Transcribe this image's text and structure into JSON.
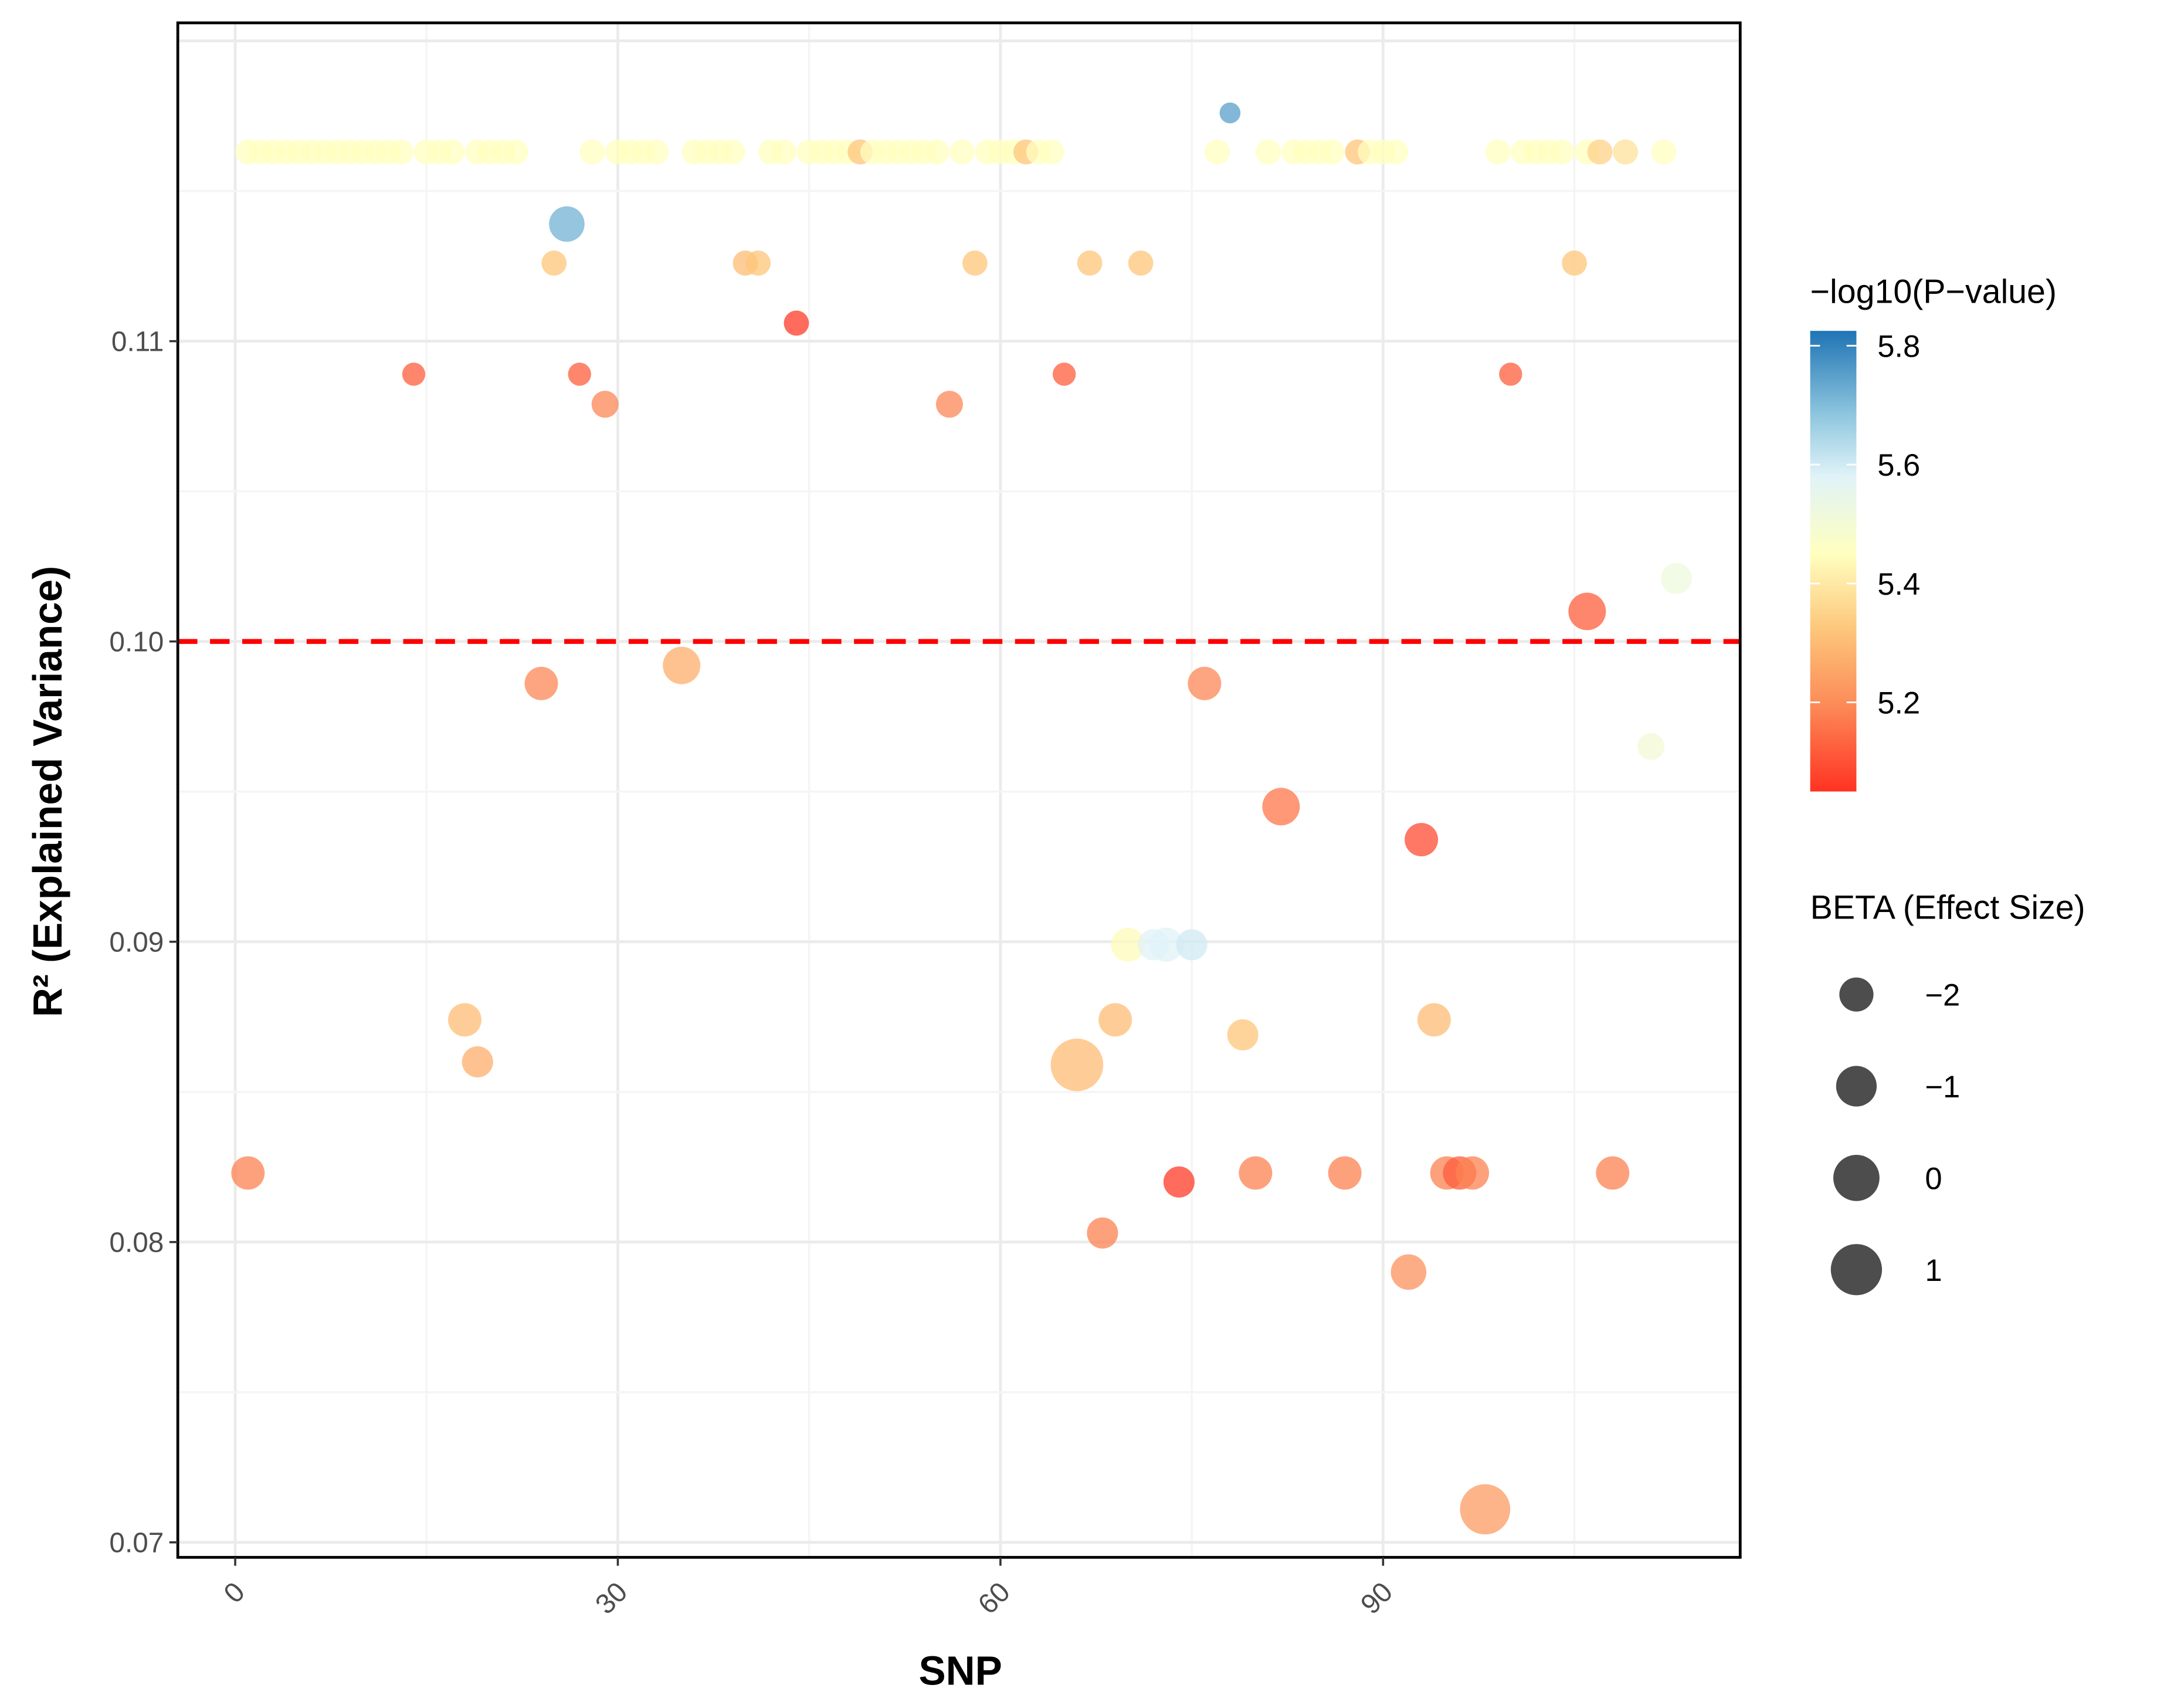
{
  "chart_data": {
    "type": "scatter",
    "title": "",
    "xlabel": "SNP",
    "ylabel": "R² (Explained Variance)",
    "xlim": [
      -4.5,
      118
    ],
    "ylim": [
      0.0695,
      0.1206
    ],
    "x_ticks": [
      0,
      30,
      60,
      90
    ],
    "x_tick_labels": [
      "0",
      "30",
      "60",
      "90"
    ],
    "y_ticks": [
      0.07,
      0.08,
      0.09,
      0.1,
      0.11
    ],
    "y_tick_labels": [
      "0.07",
      "0.08",
      "0.09",
      "0.10",
      "0.11"
    ],
    "grid": true,
    "threshold_line": {
      "y": 0.1,
      "color": "#FF0000",
      "style": "dashed"
    },
    "color_legend": {
      "title": "−log10(P−value)",
      "range": [
        5.05,
        5.825
      ],
      "ticks": [
        5.8,
        5.6,
        5.4,
        5.2
      ],
      "tick_labels": [
        "5.8",
        "5.6",
        "5.4",
        "5.2"
      ],
      "stops": [
        {
          "v": 5.05,
          "c": "#FF3322"
        },
        {
          "v": 5.2,
          "c": "#FC8D59"
        },
        {
          "v": 5.32,
          "c": "#FDC57A"
        },
        {
          "v": 5.45,
          "c": "#FFFFBF"
        },
        {
          "v": 5.58,
          "c": "#E0F3F8"
        },
        {
          "v": 5.68,
          "c": "#91C8E0"
        },
        {
          "v": 5.825,
          "c": "#1F74B4"
        }
      ],
      "placement": "right"
    },
    "size_legend": {
      "title": "BETA (Effect Size)",
      "values": [
        -2,
        -1,
        0,
        1
      ],
      "labels": [
        "−2",
        "−1",
        "0",
        "1"
      ],
      "placement": "right"
    },
    "points": [
      {
        "x": 1,
        "r2": 0.1163,
        "logp": 5.45,
        "beta": -3.1
      },
      {
        "x": 2,
        "r2": 0.1163,
        "logp": 5.45,
        "beta": -3.1
      },
      {
        "x": 3,
        "r2": 0.1163,
        "logp": 5.45,
        "beta": -3.1
      },
      {
        "x": 4,
        "r2": 0.1163,
        "logp": 5.45,
        "beta": -3.1
      },
      {
        "x": 5,
        "r2": 0.1163,
        "logp": 5.45,
        "beta": -3.1
      },
      {
        "x": 6,
        "r2": 0.1163,
        "logp": 5.45,
        "beta": -3.1
      },
      {
        "x": 7,
        "r2": 0.1163,
        "logp": 5.45,
        "beta": -3.1
      },
      {
        "x": 8,
        "r2": 0.1163,
        "logp": 5.45,
        "beta": -3.1
      },
      {
        "x": 9,
        "r2": 0.1163,
        "logp": 5.45,
        "beta": -3.1
      },
      {
        "x": 10,
        "r2": 0.1163,
        "logp": 5.45,
        "beta": -3.1
      },
      {
        "x": 11,
        "r2": 0.1163,
        "logp": 5.45,
        "beta": -3.1
      },
      {
        "x": 12,
        "r2": 0.1163,
        "logp": 5.45,
        "beta": -3.1
      },
      {
        "x": 13,
        "r2": 0.1163,
        "logp": 5.45,
        "beta": -3.1
      },
      {
        "x": 15,
        "r2": 0.1163,
        "logp": 5.45,
        "beta": -3.1
      },
      {
        "x": 16,
        "r2": 0.1163,
        "logp": 5.45,
        "beta": -3.1
      },
      {
        "x": 17,
        "r2": 0.1163,
        "logp": 5.45,
        "beta": -3.1
      },
      {
        "x": 19,
        "r2": 0.1163,
        "logp": 5.45,
        "beta": -3.1
      },
      {
        "x": 20,
        "r2": 0.1163,
        "logp": 5.45,
        "beta": -3.1
      },
      {
        "x": 21,
        "r2": 0.1163,
        "logp": 5.45,
        "beta": -3.1
      },
      {
        "x": 22,
        "r2": 0.1163,
        "logp": 5.45,
        "beta": -3.1
      },
      {
        "x": 28,
        "r2": 0.1163,
        "logp": 5.45,
        "beta": -3.1
      },
      {
        "x": 30,
        "r2": 0.1163,
        "logp": 5.45,
        "beta": -3.1
      },
      {
        "x": 31,
        "r2": 0.1163,
        "logp": 5.45,
        "beta": -3.1
      },
      {
        "x": 32,
        "r2": 0.1163,
        "logp": 5.45,
        "beta": -3.1
      },
      {
        "x": 33,
        "r2": 0.1163,
        "logp": 5.45,
        "beta": -3.1
      },
      {
        "x": 36,
        "r2": 0.1163,
        "logp": 5.45,
        "beta": -3.1
      },
      {
        "x": 37,
        "r2": 0.1163,
        "logp": 5.45,
        "beta": -3.1
      },
      {
        "x": 38,
        "r2": 0.1163,
        "logp": 5.45,
        "beta": -3.1
      },
      {
        "x": 39,
        "r2": 0.1163,
        "logp": 5.45,
        "beta": -3.1
      },
      {
        "x": 42,
        "r2": 0.1163,
        "logp": 5.45,
        "beta": -3.1
      },
      {
        "x": 43,
        "r2": 0.1163,
        "logp": 5.45,
        "beta": -3.1
      },
      {
        "x": 45,
        "r2": 0.1163,
        "logp": 5.45,
        "beta": -3.1
      },
      {
        "x": 46,
        "r2": 0.1163,
        "logp": 5.45,
        "beta": -3.1
      },
      {
        "x": 47,
        "r2": 0.1163,
        "logp": 5.45,
        "beta": -3.1
      },
      {
        "x": 48,
        "r2": 0.1163,
        "logp": 5.45,
        "beta": -3.1
      },
      {
        "x": 49,
        "r2": 0.1163,
        "logp": 5.32,
        "beta": -3.1
      },
      {
        "x": 50,
        "r2": 0.1163,
        "logp": 5.45,
        "beta": -3.1
      },
      {
        "x": 51,
        "r2": 0.1163,
        "logp": 5.45,
        "beta": -3.1
      },
      {
        "x": 52,
        "r2": 0.1163,
        "logp": 5.45,
        "beta": -3.1
      },
      {
        "x": 53,
        "r2": 0.1163,
        "logp": 5.45,
        "beta": -3.1
      },
      {
        "x": 54,
        "r2": 0.1163,
        "logp": 5.45,
        "beta": -3.1
      },
      {
        "x": 55,
        "r2": 0.1163,
        "logp": 5.45,
        "beta": -3.1
      },
      {
        "x": 57,
        "r2": 0.1163,
        "logp": 5.45,
        "beta": -3.1
      },
      {
        "x": 59,
        "r2": 0.1163,
        "logp": 5.45,
        "beta": -3.1
      },
      {
        "x": 60,
        "r2": 0.1163,
        "logp": 5.45,
        "beta": -3.1
      },
      {
        "x": 61,
        "r2": 0.1163,
        "logp": 5.45,
        "beta": -3.1
      },
      {
        "x": 62,
        "r2": 0.1163,
        "logp": 5.32,
        "beta": -3.1
      },
      {
        "x": 63,
        "r2": 0.1163,
        "logp": 5.45,
        "beta": -3.1
      },
      {
        "x": 64,
        "r2": 0.1163,
        "logp": 5.45,
        "beta": -3.1
      },
      {
        "x": 77,
        "r2": 0.1163,
        "logp": 5.45,
        "beta": -3.1
      },
      {
        "x": 81,
        "r2": 0.1163,
        "logp": 5.45,
        "beta": -3.1
      },
      {
        "x": 83,
        "r2": 0.1163,
        "logp": 5.45,
        "beta": -3.1
      },
      {
        "x": 84,
        "r2": 0.1163,
        "logp": 5.45,
        "beta": -3.1
      },
      {
        "x": 85,
        "r2": 0.1163,
        "logp": 5.45,
        "beta": -3.1
      },
      {
        "x": 86,
        "r2": 0.1163,
        "logp": 5.45,
        "beta": -3.1
      },
      {
        "x": 88,
        "r2": 0.1163,
        "logp": 5.32,
        "beta": -3.1
      },
      {
        "x": 89,
        "r2": 0.1163,
        "logp": 5.45,
        "beta": -3.1
      },
      {
        "x": 90,
        "r2": 0.1163,
        "logp": 5.45,
        "beta": -3.1
      },
      {
        "x": 91,
        "r2": 0.1163,
        "logp": 5.45,
        "beta": -3.1
      },
      {
        "x": 99,
        "r2": 0.1163,
        "logp": 5.45,
        "beta": -3.1
      },
      {
        "x": 101,
        "r2": 0.1163,
        "logp": 5.45,
        "beta": -3.1
      },
      {
        "x": 102,
        "r2": 0.1163,
        "logp": 5.45,
        "beta": -3.1
      },
      {
        "x": 103,
        "r2": 0.1163,
        "logp": 5.45,
        "beta": -3.1
      },
      {
        "x": 104,
        "r2": 0.1163,
        "logp": 5.45,
        "beta": -3.1
      },
      {
        "x": 106,
        "r2": 0.1163,
        "logp": 5.45,
        "beta": -3.1
      },
      {
        "x": 107,
        "r2": 0.1163,
        "logp": 5.35,
        "beta": -3.1
      },
      {
        "x": 109,
        "r2": 0.1163,
        "logp": 5.38,
        "beta": -3.1
      },
      {
        "x": 112,
        "r2": 0.1163,
        "logp": 5.45,
        "beta": -3.1
      },
      {
        "x": 78,
        "r2": 0.1176,
        "logp": 5.75,
        "beta": -3.5
      },
      {
        "x": 26,
        "r2": 0.1139,
        "logp": 5.72,
        "beta": -1.8
      },
      {
        "x": 25,
        "r2": 0.1126,
        "logp": 5.32,
        "beta": -3.1
      },
      {
        "x": 40,
        "r2": 0.1126,
        "logp": 5.3,
        "beta": -3.1
      },
      {
        "x": 41,
        "r2": 0.1126,
        "logp": 5.32,
        "beta": -3.1
      },
      {
        "x": 58,
        "r2": 0.1126,
        "logp": 5.32,
        "beta": -3.1
      },
      {
        "x": 67,
        "r2": 0.1126,
        "logp": 5.32,
        "beta": -3.1
      },
      {
        "x": 71,
        "r2": 0.1126,
        "logp": 5.32,
        "beta": -3.1
      },
      {
        "x": 105,
        "r2": 0.1126,
        "logp": 5.32,
        "beta": -3.1
      },
      {
        "x": 44,
        "r2": 0.1106,
        "logp": 5.06,
        "beta": -3.1
      },
      {
        "x": 14,
        "r2": 0.1089,
        "logp": 5.12,
        "beta": -3.3
      },
      {
        "x": 27,
        "r2": 0.1089,
        "logp": 5.12,
        "beta": -3.3
      },
      {
        "x": 65,
        "r2": 0.1089,
        "logp": 5.12,
        "beta": -3.3
      },
      {
        "x": 100,
        "r2": 0.1089,
        "logp": 5.12,
        "beta": -3.3
      },
      {
        "x": 29,
        "r2": 0.1079,
        "logp": 5.19,
        "beta": -2.9
      },
      {
        "x": 56,
        "r2": 0.1079,
        "logp": 5.19,
        "beta": -2.9
      },
      {
        "x": 113,
        "r2": 0.1021,
        "logp": 5.52,
        "beta": -2.4
      },
      {
        "x": 106,
        "r2": 0.101,
        "logp": 5.12,
        "beta": -1.5
      },
      {
        "x": 35,
        "r2": 0.0992,
        "logp": 5.27,
        "beta": -1.5
      },
      {
        "x": 24,
        "r2": 0.0986,
        "logp": 5.19,
        "beta": -2.1
      },
      {
        "x": 76,
        "r2": 0.0986,
        "logp": 5.19,
        "beta": -2.1
      },
      {
        "x": 111,
        "r2": 0.0965,
        "logp": 5.5,
        "beta": -2.9
      },
      {
        "x": 82,
        "r2": 0.0945,
        "logp": 5.16,
        "beta": -1.5
      },
      {
        "x": 93,
        "r2": 0.0934,
        "logp": 5.09,
        "beta": -2.1
      },
      {
        "x": 70,
        "r2": 0.0899,
        "logp": 5.44,
        "beta": -2.0
      },
      {
        "x": 72,
        "r2": 0.0899,
        "logp": 5.58,
        "beta": -2.4
      },
      {
        "x": 73,
        "r2": 0.0899,
        "logp": 5.58,
        "beta": -2.0
      },
      {
        "x": 75,
        "r2": 0.0899,
        "logp": 5.6,
        "beta": -2.4
      },
      {
        "x": 18,
        "r2": 0.0874,
        "logp": 5.3,
        "beta": -2.1
      },
      {
        "x": 69,
        "r2": 0.0874,
        "logp": 5.3,
        "beta": -2.1
      },
      {
        "x": 94,
        "r2": 0.0874,
        "logp": 5.3,
        "beta": -2.1
      },
      {
        "x": 79,
        "r2": 0.0869,
        "logp": 5.32,
        "beta": -2.4
      },
      {
        "x": 19,
        "r2": 0.086,
        "logp": 5.27,
        "beta": -2.4
      },
      {
        "x": 66,
        "r2": 0.0859,
        "logp": 5.3,
        "beta": 1.3
      },
      {
        "x": 1,
        "r2": 0.0823,
        "logp": 5.18,
        "beta": -2.1
      },
      {
        "x": 80,
        "r2": 0.0823,
        "logp": 5.18,
        "beta": -2.1
      },
      {
        "x": 87,
        "r2": 0.0823,
        "logp": 5.18,
        "beta": -2.1
      },
      {
        "x": 95,
        "r2": 0.0823,
        "logp": 5.18,
        "beta": -2.1
      },
      {
        "x": 96,
        "r2": 0.0823,
        "logp": 5.12,
        "beta": -2.1
      },
      {
        "x": 97,
        "r2": 0.0823,
        "logp": 5.18,
        "beta": -2.1
      },
      {
        "x": 108,
        "r2": 0.0823,
        "logp": 5.18,
        "beta": -2.1
      },
      {
        "x": 74,
        "r2": 0.082,
        "logp": 5.06,
        "beta": -2.4
      },
      {
        "x": 68,
        "r2": 0.0803,
        "logp": 5.18,
        "beta": -2.4
      },
      {
        "x": 92,
        "r2": 0.079,
        "logp": 5.21,
        "beta": -1.8
      },
      {
        "x": 98,
        "r2": 0.0711,
        "logp": 5.23,
        "beta": 0.8
      }
    ]
  }
}
